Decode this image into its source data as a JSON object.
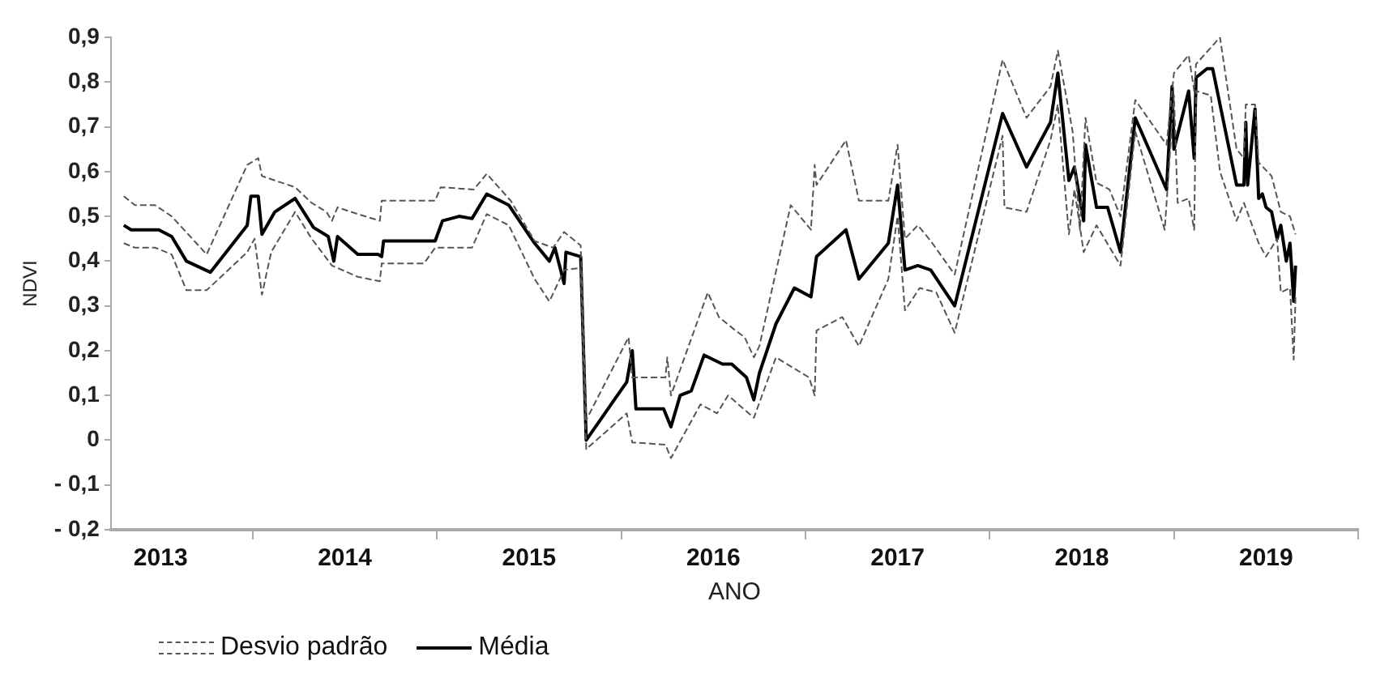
{
  "chart_data": {
    "type": "line",
    "xlabel": "ANO",
    "ylabel": "NDVI",
    "xlim": [
      2013.23,
      2020
    ],
    "xticks": [
      {
        "value": 2013.5,
        "label": "2013"
      },
      {
        "value": 2014,
        "label": null
      },
      {
        "value": 2014.5,
        "label": "2014"
      },
      {
        "value": 2015,
        "label": null
      },
      {
        "value": 2015.5,
        "label": "2015"
      },
      {
        "value": 2016,
        "label": null
      },
      {
        "value": 2016.5,
        "label": "2016"
      },
      {
        "value": 2017,
        "label": null
      },
      {
        "value": 2017.5,
        "label": "2017"
      },
      {
        "value": 2018,
        "label": null
      },
      {
        "value": 2018.5,
        "label": "2018"
      },
      {
        "value": 2019,
        "label": null
      },
      {
        "value": 2019.5,
        "label": "2019"
      },
      {
        "value": 2020,
        "label": null
      }
    ],
    "ylim": [
      -0.2,
      0.9
    ],
    "yticks": [
      {
        "value": -0.2,
        "label": "- 0,2"
      },
      {
        "value": -0.1,
        "label": "- 0,1"
      },
      0,
      {
        "value": 0.1,
        "label": "0,1"
      },
      {
        "value": 0.2,
        "label": "0,2"
      },
      {
        "value": 0.3,
        "label": "0,3"
      },
      {
        "value": 0.4,
        "label": "0,4"
      },
      {
        "value": 0.5,
        "label": "0,5"
      },
      {
        "value": 0.6,
        "label": "0,6"
      },
      {
        "value": 0.7,
        "label": "0,7"
      },
      {
        "value": 0.8,
        "label": "0,8"
      },
      {
        "value": 0.9,
        "label": "0,9"
      }
    ],
    "grid": false,
    "legend": "bottom left",
    "marker": "none",
    "series": [
      {
        "name": "Desvio padrão",
        "color": "#555555",
        "line_style": "dashed",
        "x": [
          2013.3,
          2013.36,
          2013.47,
          2013.56,
          2013.75,
          2013.97,
          2014.03,
          2014.05,
          2014.23,
          2014.32,
          2014.4,
          2014.43,
          2014.46,
          2014.57,
          2014.69,
          2014.7,
          2014.99,
          2015.02,
          2015.2,
          2015.27,
          2015.4,
          2015.53,
          2015.63,
          2015.69,
          2015.78,
          2015.81,
          2016.04,
          2016.06,
          2016.24,
          2016.25,
          2016.27,
          2016.47,
          2016.53,
          2016.62,
          2016.67,
          2016.72,
          2016.75,
          2016.92,
          2017.03,
          2017.05,
          2017.06,
          2017.22,
          2017.29,
          2017.45,
          2017.5,
          2017.54,
          2017.61,
          2017.62,
          2017.68,
          2017.81,
          2018.07,
          2018.2,
          2018.33,
          2018.37,
          2018.45,
          2018.49,
          2018.52,
          2018.58,
          2018.65,
          2018.71,
          2018.79,
          2018.96,
          2019.0,
          2019.08,
          2019.11,
          2019.12,
          2019.25,
          2019.34,
          2019.38,
          2019.39,
          2019.44,
          2019.46,
          2019.53,
          2019.58,
          2019.63,
          2019.66
        ],
        "values": [
          0.545,
          0.525,
          0.525,
          0.5,
          0.415,
          0.615,
          0.63,
          0.59,
          0.565,
          0.53,
          0.51,
          0.49,
          0.52,
          0.505,
          0.49,
          0.535,
          0.535,
          0.565,
          0.56,
          0.595,
          0.535,
          0.445,
          0.43,
          0.465,
          0.435,
          0.045,
          0.23,
          0.14,
          0.14,
          0.185,
          0.1,
          0.33,
          0.275,
          0.245,
          0.23,
          0.185,
          0.21,
          0.525,
          0.47,
          0.615,
          0.57,
          0.67,
          0.535,
          0.535,
          0.66,
          0.45,
          0.48,
          0.475,
          0.445,
          0.37,
          0.85,
          0.72,
          0.79,
          0.87,
          0.69,
          0.47,
          0.72,
          0.575,
          0.56,
          0.5,
          0.76,
          0.66,
          0.82,
          0.86,
          0.78,
          0.84,
          0.9,
          0.65,
          0.63,
          0.75,
          0.75,
          0.62,
          0.59,
          0.51,
          0.5,
          0.46
        ]
      },
      {
        "color": "#555555",
        "line_style": "dashed",
        "x": [
          2013.3,
          2013.36,
          2013.47,
          2013.56,
          2013.64,
          2013.75,
          2013.97,
          2014.01,
          2014.05,
          2014.1,
          2014.23,
          2014.32,
          2014.43,
          2014.57,
          2014.69,
          2014.7,
          2014.93,
          2014.99,
          2015.19,
          2015.27,
          2015.39,
          2015.53,
          2015.61,
          2015.69,
          2015.78,
          2015.81,
          2016.03,
          2016.06,
          2016.24,
          2016.27,
          2016.43,
          2016.52,
          2016.58,
          2016.72,
          2016.84,
          2017.02,
          2017.05,
          2017.06,
          2017.2,
          2017.29,
          2017.45,
          2017.5,
          2017.54,
          2017.62,
          2017.71,
          2017.81,
          2018.07,
          2018.08,
          2018.2,
          2018.33,
          2018.37,
          2018.43,
          2018.46,
          2018.51,
          2018.58,
          2018.71,
          2018.79,
          2018.95,
          2019.0,
          2019.02,
          2019.08,
          2019.11,
          2019.12,
          2019.2,
          2019.25,
          2019.34,
          2019.38,
          2019.46,
          2019.5,
          2019.56,
          2019.58,
          2019.63,
          2019.65,
          2019.66
        ],
        "values": [
          0.44,
          0.43,
          0.43,
          0.415,
          0.335,
          0.335,
          0.42,
          0.45,
          0.325,
          0.42,
          0.51,
          0.45,
          0.39,
          0.365,
          0.355,
          0.395,
          0.395,
          0.43,
          0.43,
          0.505,
          0.48,
          0.36,
          0.31,
          0.38,
          0.385,
          -0.02,
          0.06,
          -0.005,
          -0.01,
          -0.04,
          0.08,
          0.06,
          0.1,
          0.05,
          0.185,
          0.14,
          0.1,
          0.245,
          0.275,
          0.21,
          0.36,
          0.5,
          0.29,
          0.34,
          0.33,
          0.24,
          0.68,
          0.52,
          0.51,
          0.67,
          0.75,
          0.46,
          0.56,
          0.42,
          0.48,
          0.39,
          0.69,
          0.47,
          0.77,
          0.53,
          0.54,
          0.47,
          0.78,
          0.77,
          0.6,
          0.49,
          0.53,
          0.44,
          0.41,
          0.45,
          0.33,
          0.34,
          0.18,
          0.32
        ]
      },
      {
        "name": "Média",
        "color": "#000000",
        "line_style": "solid",
        "x": [
          2013.3,
          2013.34,
          2013.49,
          2013.56,
          2013.64,
          2013.77,
          2013.97,
          2013.99,
          2014.03,
          2014.05,
          2014.12,
          2014.23,
          2014.33,
          2014.41,
          2014.44,
          2014.46,
          2014.57,
          2014.68,
          2014.7,
          2014.71,
          2014.99,
          2015.03,
          2015.12,
          2015.19,
          2015.27,
          2015.39,
          2015.53,
          2015.61,
          2015.64,
          2015.69,
          2015.7,
          2015.78,
          2015.81,
          2016.03,
          2016.06,
          2016.08,
          2016.23,
          2016.27,
          2016.32,
          2016.38,
          2016.45,
          2016.55,
          2016.6,
          2016.68,
          2016.72,
          2016.75,
          2016.84,
          2016.94,
          2017.03,
          2017.06,
          2017.22,
          2017.29,
          2017.45,
          2017.5,
          2017.54,
          2017.61,
          2017.68,
          2017.81,
          2018.07,
          2018.2,
          2018.33,
          2018.37,
          2018.43,
          2018.46,
          2018.51,
          2018.52,
          2018.58,
          2018.64,
          2018.71,
          2018.79,
          2018.96,
          2018.99,
          2019.0,
          2019.08,
          2019.11,
          2019.12,
          2019.18,
          2019.21,
          2019.25,
          2019.34,
          2019.38,
          2019.39,
          2019.4,
          2019.44,
          2019.46,
          2019.48,
          2019.5,
          2019.53,
          2019.56,
          2019.58,
          2019.61,
          2019.63,
          2019.65,
          2019.66
        ],
        "values": [
          0.48,
          0.47,
          0.47,
          0.455,
          0.4,
          0.375,
          0.48,
          0.545,
          0.545,
          0.46,
          0.51,
          0.54,
          0.475,
          0.455,
          0.4,
          0.455,
          0.415,
          0.415,
          0.41,
          0.445,
          0.445,
          0.49,
          0.5,
          0.495,
          0.55,
          0.525,
          0.44,
          0.4,
          0.43,
          0.35,
          0.42,
          0.41,
          0.0,
          0.13,
          0.2,
          0.07,
          0.07,
          0.03,
          0.1,
          0.11,
          0.19,
          0.17,
          0.17,
          0.14,
          0.09,
          0.15,
          0.26,
          0.34,
          0.32,
          0.41,
          0.47,
          0.36,
          0.44,
          0.57,
          0.38,
          0.39,
          0.38,
          0.3,
          0.73,
          0.61,
          0.71,
          0.82,
          0.58,
          0.61,
          0.49,
          0.66,
          0.52,
          0.52,
          0.42,
          0.72,
          0.56,
          0.79,
          0.65,
          0.78,
          0.63,
          0.81,
          0.83,
          0.83,
          0.75,
          0.57,
          0.57,
          0.71,
          0.57,
          0.74,
          0.54,
          0.55,
          0.52,
          0.51,
          0.45,
          0.48,
          0.4,
          0.44,
          0.31,
          0.39
        ]
      }
    ]
  }
}
